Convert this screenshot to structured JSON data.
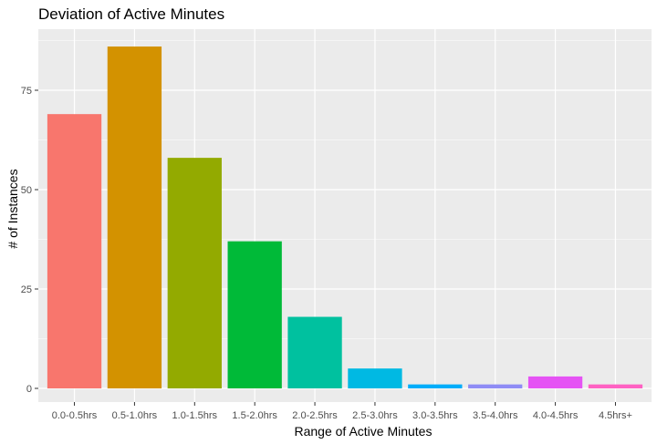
{
  "chart_data": {
    "type": "bar",
    "title": "Deviation of Active Minutes",
    "xlabel": "Range of Active Minutes",
    "ylabel": "# of Instances",
    "categories": [
      "0.0-0.5hrs",
      "0.5-1.0hrs",
      "1.0-1.5hrs",
      "1.5-2.0hrs",
      "2.0-2.5hrs",
      "2.5-3.0hrs",
      "3.0-3.5hrs",
      "3.5-4.0hrs",
      "4.0-4.5hrs",
      "4.5hrs+"
    ],
    "values": [
      69,
      86,
      58,
      37,
      18,
      5,
      1,
      1,
      3,
      1
    ],
    "colors": [
      "#F8766D",
      "#D39200",
      "#93AA00",
      "#00BA38",
      "#00C19F",
      "#00B9E3",
      "#00ADFA",
      "#8F8CF5",
      "#E553F4",
      "#FF61C3"
    ],
    "y_ticks": [
      0,
      25,
      50,
      75
    ],
    "ylim": [
      0,
      90
    ],
    "grid": true,
    "legend": "none",
    "panel_background": "#EBEBEB",
    "grid_color": "#FFFFFF"
  }
}
